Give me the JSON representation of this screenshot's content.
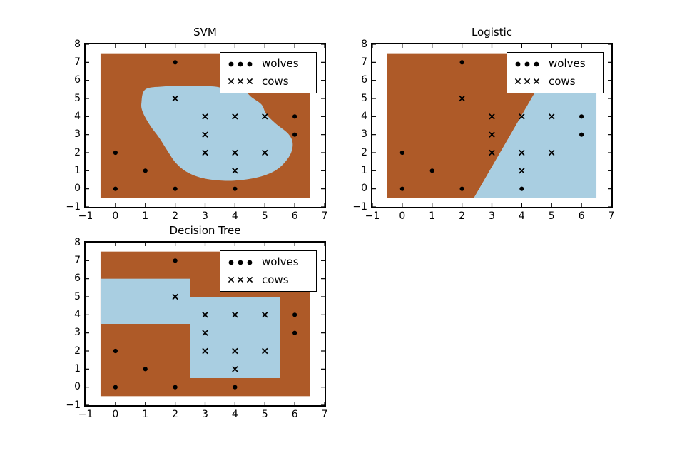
{
  "colors": {
    "wolves_region": "#AE5A28",
    "cows_region": "#A9CEE1",
    "marker": "#000000",
    "frame": "#000000",
    "background": "#FFFFFF"
  },
  "legend": {
    "entries": [
      {
        "label": "wolves",
        "marker": "dot"
      },
      {
        "label": "cows",
        "marker": "x"
      }
    ]
  },
  "chart_data": [
    {
      "type": "scatter",
      "title": "SVM",
      "xlim": [
        -1,
        7
      ],
      "ylim": [
        -1,
        8
      ],
      "xticks": [
        -1,
        0,
        1,
        2,
        3,
        4,
        5,
        6,
        7
      ],
      "yticks": [
        -1,
        0,
        1,
        2,
        3,
        4,
        5,
        6,
        7,
        8
      ],
      "legend_position": "upper right",
      "grid": false,
      "series": [
        {
          "name": "wolves",
          "marker": "dot",
          "points": [
            [
              0,
              0
            ],
            [
              2,
              0
            ],
            [
              4,
              0
            ],
            [
              1,
              1
            ],
            [
              0,
              2
            ],
            [
              6,
              3
            ],
            [
              6,
              4
            ],
            [
              2,
              7
            ]
          ]
        },
        {
          "name": "cows",
          "marker": "x",
          "points": [
            [
              2,
              5
            ],
            [
              3,
              4
            ],
            [
              4,
              4
            ],
            [
              5,
              4
            ],
            [
              3,
              3
            ],
            [
              3,
              2
            ],
            [
              4,
              2
            ],
            [
              5,
              2
            ],
            [
              4,
              1
            ]
          ]
        }
      ],
      "regions": [
        {
          "class": "wolves",
          "shape": "rect",
          "rect": [
            -0.5,
            -0.5,
            6.5,
            7.5
          ]
        },
        {
          "class": "cows",
          "shape": "blob",
          "points": [
            [
              1.0,
              5.5
            ],
            [
              1.6,
              5.66
            ],
            [
              2.2,
              5.7
            ],
            [
              2.9,
              5.68
            ],
            [
              3.46,
              5.62
            ],
            [
              3.94,
              5.28
            ],
            [
              4.29,
              5.42
            ],
            [
              4.57,
              5.05
            ],
            [
              4.89,
              4.66
            ],
            [
              5.05,
              4.13
            ],
            [
              5.37,
              3.6
            ],
            [
              5.77,
              3.07
            ],
            [
              5.93,
              2.55
            ],
            [
              5.85,
              1.89
            ],
            [
              5.53,
              1.23
            ],
            [
              5.13,
              0.83
            ],
            [
              4.57,
              0.57
            ],
            [
              3.78,
              0.44
            ],
            [
              2.98,
              0.57
            ],
            [
              2.42,
              0.9
            ],
            [
              2.03,
              1.42
            ],
            [
              1.75,
              2.08
            ],
            [
              1.47,
              2.81
            ],
            [
              1.15,
              3.53
            ],
            [
              0.91,
              4.26
            ],
            [
              0.87,
              4.78
            ]
          ]
        }
      ]
    },
    {
      "type": "scatter",
      "title": "Logistic",
      "xlim": [
        -1,
        7
      ],
      "ylim": [
        -1,
        8
      ],
      "xticks": [
        -1,
        0,
        1,
        2,
        3,
        4,
        5,
        6,
        7
      ],
      "yticks": [
        -1,
        0,
        1,
        2,
        3,
        4,
        5,
        6,
        7,
        8
      ],
      "legend_position": "upper right",
      "grid": false,
      "series": [
        {
          "name": "wolves",
          "marker": "dot",
          "points": [
            [
              0,
              0
            ],
            [
              2,
              0
            ],
            [
              4,
              0
            ],
            [
              1,
              1
            ],
            [
              0,
              2
            ],
            [
              6,
              3
            ],
            [
              6,
              4
            ],
            [
              2,
              7
            ]
          ]
        },
        {
          "name": "cows",
          "marker": "x",
          "points": [
            [
              2,
              5
            ],
            [
              3,
              4
            ],
            [
              4,
              4
            ],
            [
              5,
              4
            ],
            [
              3,
              3
            ],
            [
              3,
              2
            ],
            [
              4,
              2
            ],
            [
              5,
              2
            ],
            [
              4,
              1
            ]
          ]
        }
      ],
      "regions": [
        {
          "class": "wolves",
          "shape": "polygon",
          "points": [
            [
              -0.5,
              -0.5
            ],
            [
              2.4,
              -0.5
            ],
            [
              5.2,
              7.5
            ],
            [
              -0.5,
              7.5
            ]
          ]
        },
        {
          "class": "cows",
          "shape": "polygon",
          "points": [
            [
              2.4,
              -0.5
            ],
            [
              6.5,
              -0.5
            ],
            [
              6.5,
              7.5
            ],
            [
              5.2,
              7.5
            ]
          ]
        }
      ]
    },
    {
      "type": "scatter",
      "title": "Decision Tree",
      "xlim": [
        -1,
        7
      ],
      "ylim": [
        -1,
        8
      ],
      "xticks": [
        -1,
        0,
        1,
        2,
        3,
        4,
        5,
        6,
        7
      ],
      "yticks": [
        -1,
        0,
        1,
        2,
        3,
        4,
        5,
        6,
        7,
        8
      ],
      "legend_position": "upper right",
      "grid": false,
      "series": [
        {
          "name": "wolves",
          "marker": "dot",
          "points": [
            [
              0,
              0
            ],
            [
              2,
              0
            ],
            [
              4,
              0
            ],
            [
              1,
              1
            ],
            [
              0,
              2
            ],
            [
              6,
              3
            ],
            [
              6,
              4
            ],
            [
              2,
              7
            ]
          ]
        },
        {
          "name": "cows",
          "marker": "x",
          "points": [
            [
              2,
              5
            ],
            [
              3,
              4
            ],
            [
              4,
              4
            ],
            [
              5,
              4
            ],
            [
              3,
              3
            ],
            [
              3,
              2
            ],
            [
              4,
              2
            ],
            [
              5,
              2
            ],
            [
              4,
              1
            ]
          ]
        }
      ],
      "regions": [
        {
          "class": "wolves",
          "shape": "rect",
          "rect": [
            -0.5,
            -0.5,
            6.5,
            7.5
          ]
        },
        {
          "class": "cows",
          "shape": "rect",
          "rect": [
            -0.5,
            3.5,
            2.5,
            6.0
          ]
        },
        {
          "class": "cows",
          "shape": "rect",
          "rect": [
            2.5,
            0.5,
            5.5,
            5.0
          ]
        }
      ]
    }
  ]
}
